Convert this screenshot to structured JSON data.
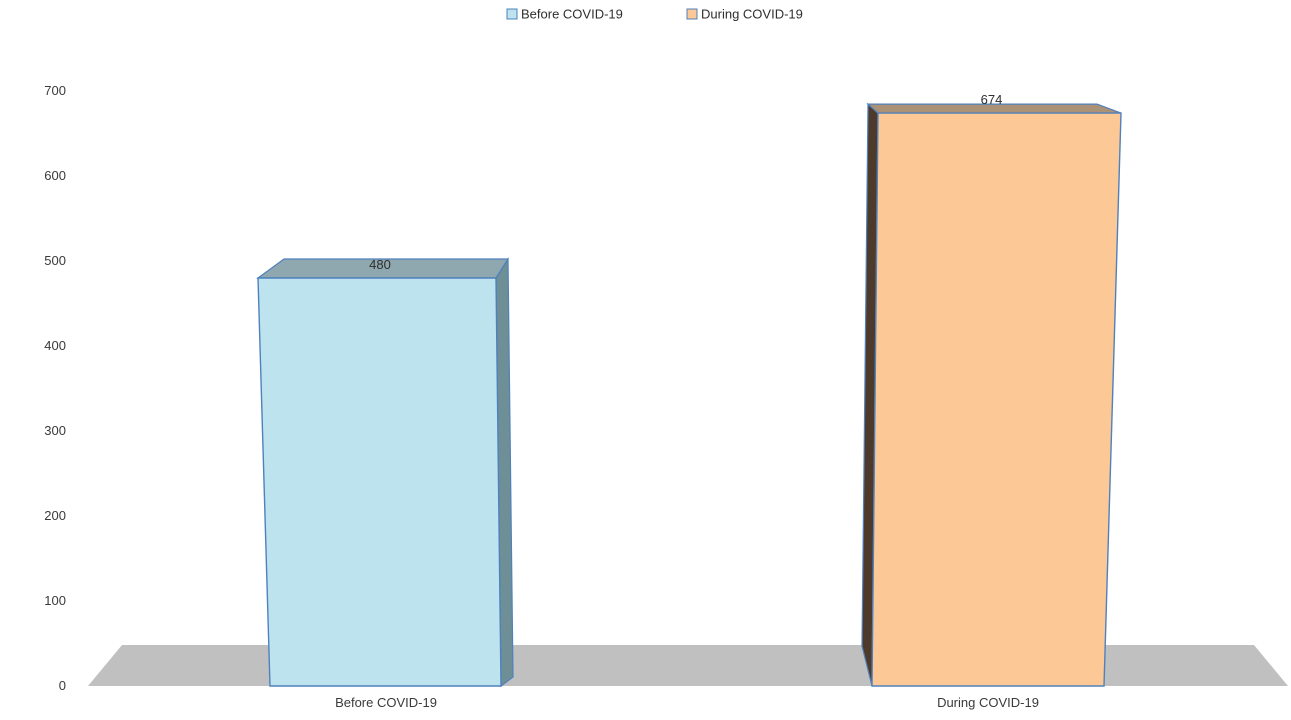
{
  "chart_data": {
    "type": "bar",
    "categories": [
      "Before COVID-19",
      "During COVID-19"
    ],
    "values": [
      480,
      674
    ],
    "data_labels": [
      "480",
      "674"
    ],
    "ylim": [
      0,
      700
    ],
    "yticks": [
      0,
      100,
      200,
      300,
      400,
      500,
      600,
      700
    ],
    "title": "",
    "xlabel": "",
    "ylabel": "",
    "legend": {
      "placement": "top-center",
      "entries": [
        "Before COVID-19",
        "During COVID-19"
      ]
    },
    "grid": false,
    "style": "3d-column",
    "colors": {
      "before_front": "#bde3ee",
      "before_top": "#8fa7ae",
      "before_side": "#6f8f97",
      "during_front": "#fcc895",
      "during_top": "#ab9176",
      "during_side": "#4d3a2b",
      "edge": "#4f81bd",
      "floor": "#c0c0c0"
    }
  }
}
